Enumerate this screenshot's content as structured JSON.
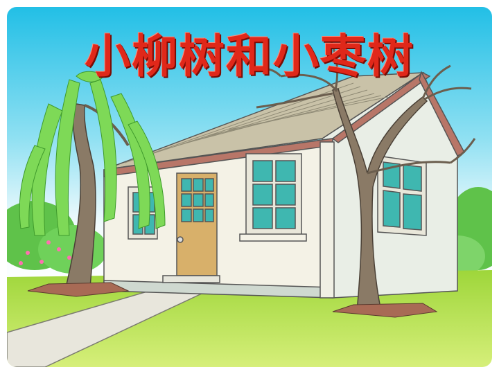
{
  "title": "小柳树和小枣树",
  "colors": {
    "sky_top": "#2ec4e8",
    "sky_bottom": "#ffffff",
    "title": "#e0281a",
    "grass": "#b6e04a",
    "house_wall": "#f4f2e6",
    "roof": "#c9c2a8",
    "door": "#d8b06a",
    "window_glass": "#3fb7b0",
    "willow": "#7ed957",
    "trunk": "#8a7a66"
  },
  "icons": [
    "house-icon",
    "willow-tree-icon",
    "jujube-tree-icon"
  ]
}
